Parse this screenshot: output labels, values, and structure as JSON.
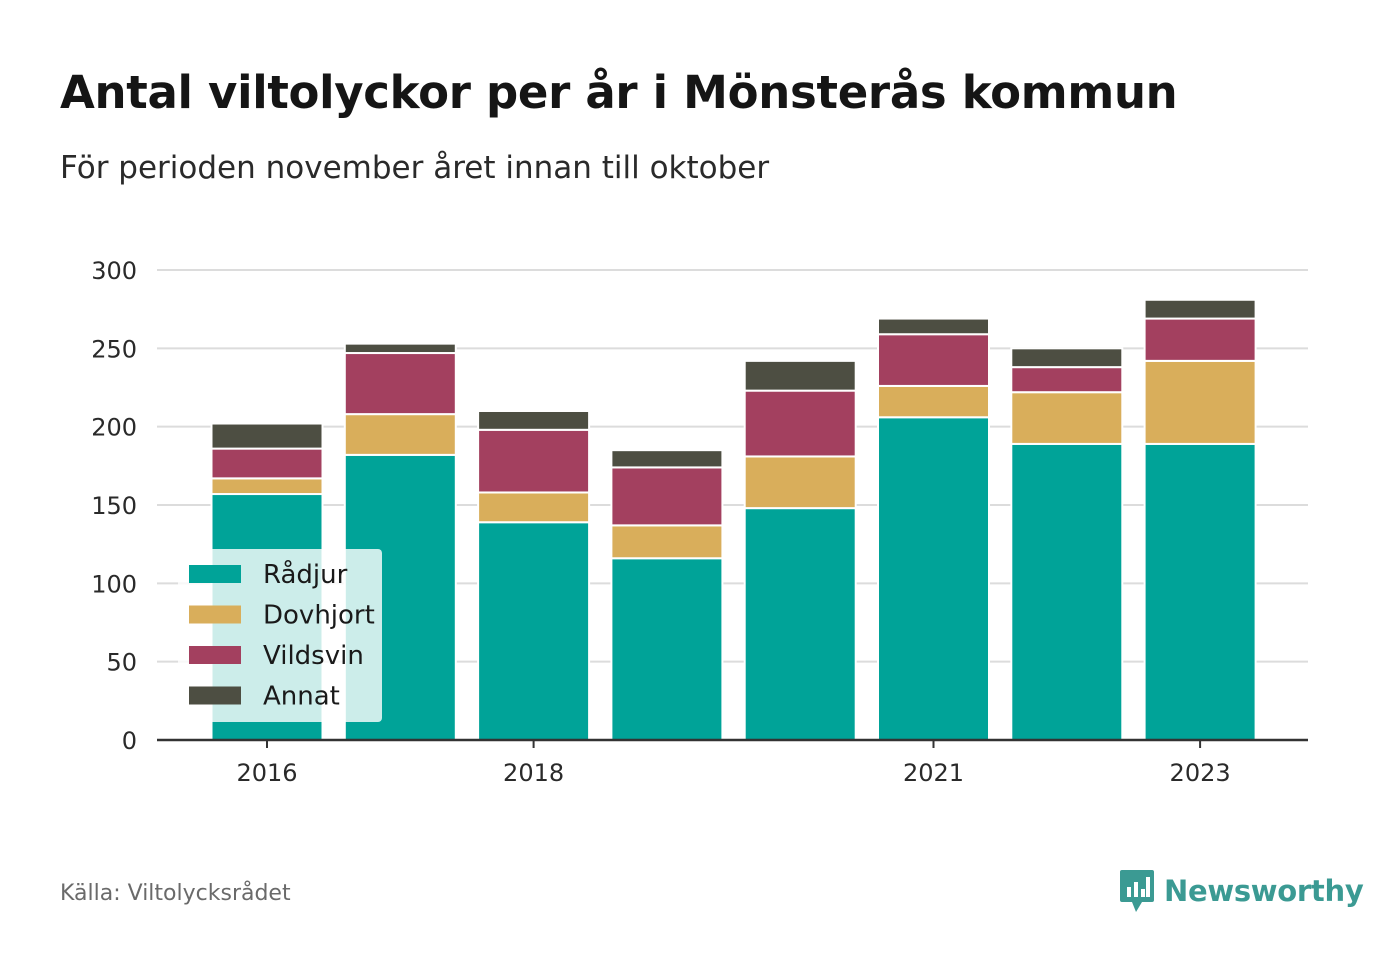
{
  "title": "Antal viltolyckor per år i Mönsterås kommun",
  "subtitle": "För perioden november året innan till oktober",
  "source": "Källa: Viltolycksrådet",
  "brand": {
    "name": "Newsworthy",
    "icon": "newsworthy-logo-icon",
    "color": "#3b9a93"
  },
  "chart_data": {
    "type": "bar",
    "stacked": true,
    "categories": [
      "2016",
      "2017",
      "2018",
      "2019",
      "2020",
      "2021",
      "2022",
      "2023"
    ],
    "x_tick_labels": [
      "2016",
      "2018",
      "2021",
      "2023"
    ],
    "series": [
      {
        "name": "Rådjur",
        "color": "#00a398",
        "values": [
          157,
          182,
          139,
          116,
          148,
          206,
          189,
          189
        ]
      },
      {
        "name": "Dovhjort",
        "color": "#d9ae5b",
        "values": [
          10,
          26,
          19,
          21,
          33,
          20,
          33,
          53
        ]
      },
      {
        "name": "Vildsvin",
        "color": "#a3405f",
        "values": [
          19,
          39,
          40,
          37,
          42,
          33,
          16,
          27
        ]
      },
      {
        "name": "Annat",
        "color": "#4d4e42",
        "values": [
          16,
          6,
          12,
          11,
          19,
          10,
          12,
          12
        ]
      }
    ],
    "ylim": [
      0,
      300
    ],
    "yticks": [
      0,
      50,
      100,
      150,
      200,
      250,
      300
    ],
    "grid": true,
    "legend": "bottom-left",
    "xlabel": "",
    "ylabel": ""
  }
}
